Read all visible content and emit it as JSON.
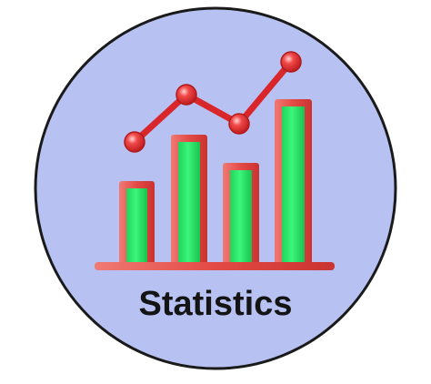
{
  "title": "Statistics",
  "colors": {
    "circle_fill": "#b7c2f3",
    "circle_stroke": "#1a1a1a",
    "bar_fill": "#2ef06a",
    "bar_stroke": "#e8403f",
    "line": "#e0282b",
    "text": "#141414"
  },
  "chart": {
    "bars": 4,
    "line_points": 4
  }
}
